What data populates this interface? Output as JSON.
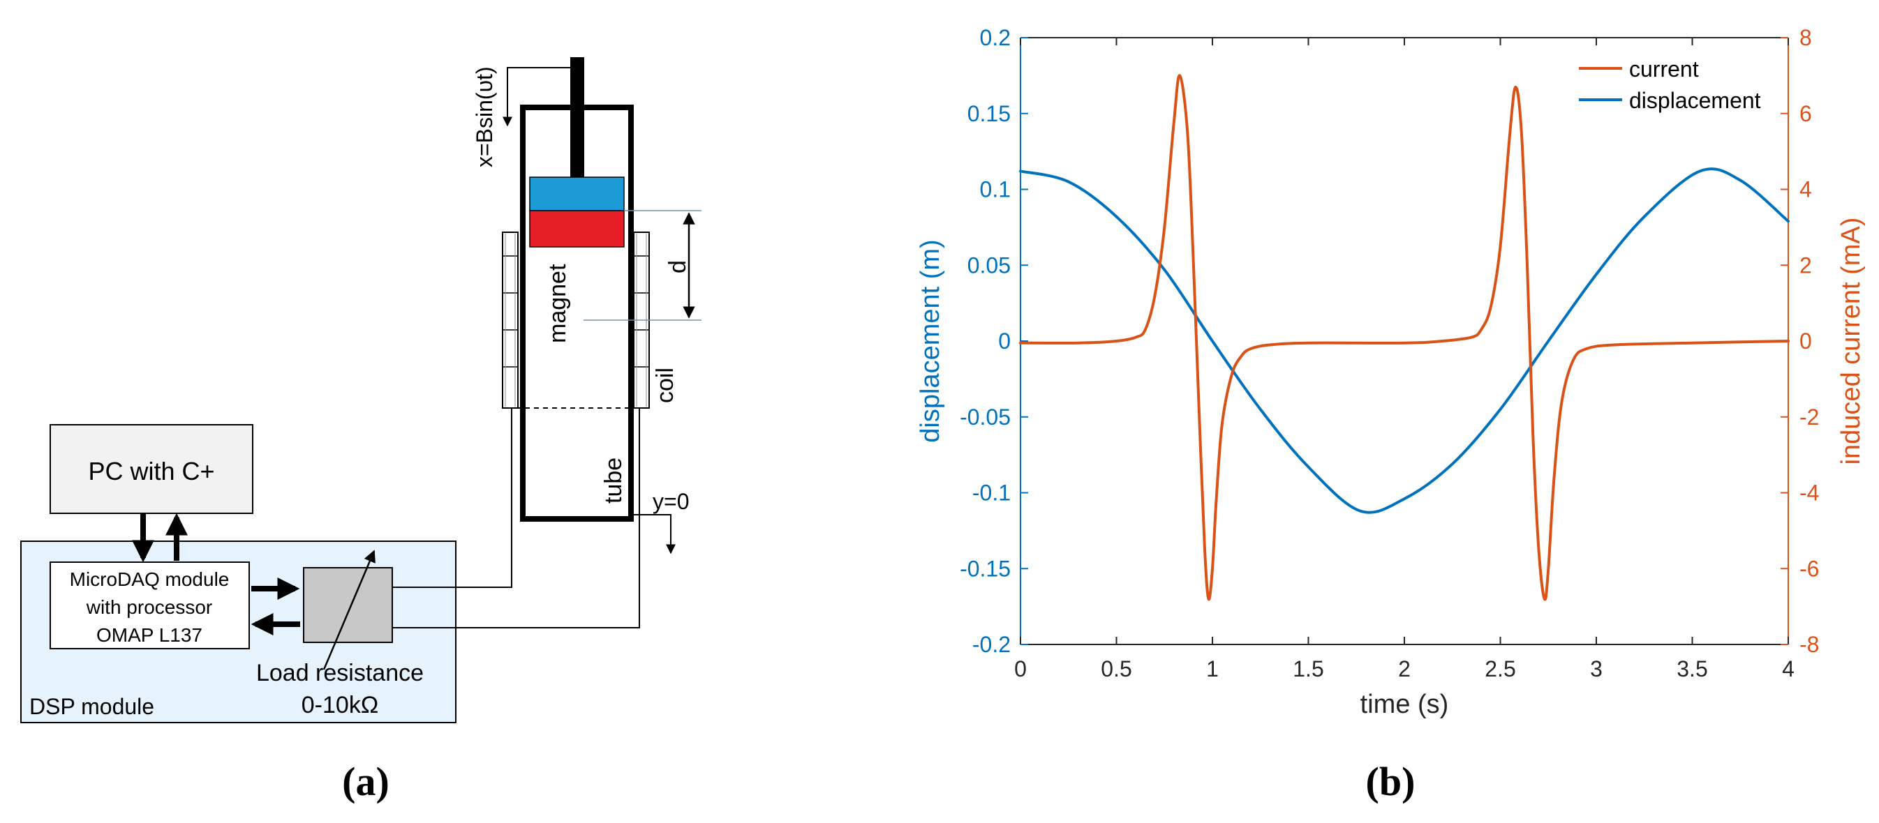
{
  "panel_a": {
    "label": "(a)",
    "pc_label": "PC with C+",
    "microdaq_lines": [
      "MicroDAQ module",
      "with processor",
      "OMAP L137"
    ],
    "dsp_label": "DSP module",
    "load_resistance_lines": [
      "Load resistance",
      "0-10kΩ"
    ],
    "excitation_label": "x=Bsin(υt)",
    "magnet_label": "magnet",
    "coil_label": "coil",
    "tube_label": "tube",
    "distance_label": "d",
    "origin_label": "y=0",
    "colors": {
      "magnet_top": "#1b9ad6",
      "magnet_bottom": "#e51f25",
      "dsp_fill": "#e6f3fc",
      "pc_fill": "#f2f2f2",
      "resistor_fill": "#c8c8c8"
    }
  },
  "panel_b": {
    "label": "(b)",
    "xlabel": "time (s)",
    "ylabel_left": "displacement (m)",
    "ylabel_right": "induced current (mA)",
    "xticks": [
      "0",
      "0.5",
      "1",
      "1.5",
      "2",
      "2.5",
      "3",
      "3.5",
      "4"
    ],
    "yticks_left": [
      "0.2",
      "0.15",
      "0.1",
      "0.05",
      "0",
      "-0.05",
      "-0.1",
      "-0.15",
      "-0.2"
    ],
    "yticks_right": [
      "8",
      "6",
      "4",
      "2",
      "0",
      "-2",
      "-4",
      "-6",
      "-8"
    ],
    "legend": [
      "current",
      "displacement"
    ]
  },
  "chart_data": {
    "type": "line",
    "xlabel": "time (s)",
    "ylabel": "displacement (m)",
    "y2label": "induced current (mA)",
    "xlim": [
      0,
      4
    ],
    "ylim": [
      -0.2,
      0.2
    ],
    "y2lim": [
      -8,
      8
    ],
    "grid": false,
    "legend_position": "top-right",
    "series": [
      {
        "name": "displacement",
        "axis": "left",
        "color": "#0072bd",
        "x": [
          0,
          0.25,
          0.5,
          0.75,
          1.0,
          1.25,
          1.5,
          1.77,
          2.0,
          2.25,
          2.5,
          2.75,
          3.0,
          3.25,
          3.54,
          3.75,
          4.0
        ],
        "values": [
          0.112,
          0.105,
          0.082,
          0.047,
          0.0,
          -0.045,
          -0.083,
          -0.112,
          -0.104,
          -0.081,
          -0.045,
          0.0,
          0.044,
          0.082,
          0.112,
          0.106,
          0.079
        ]
      },
      {
        "name": "current",
        "axis": "right",
        "color": "#d95319",
        "x": [
          0,
          0.3,
          0.5,
          0.6,
          0.65,
          0.7,
          0.75,
          0.8,
          0.83,
          0.87,
          0.9,
          0.93,
          0.96,
          0.98,
          1.0,
          1.02,
          1.05,
          1.1,
          1.15,
          1.2,
          1.3,
          1.5,
          2.0,
          2.2,
          2.35,
          2.4,
          2.45,
          2.5,
          2.55,
          2.58,
          2.61,
          2.64,
          2.67,
          2.7,
          2.73,
          2.75,
          2.78,
          2.82,
          2.88,
          2.95,
          3.1,
          3.5,
          4.0
        ],
        "values": [
          -0.05,
          -0.05,
          0.0,
          0.1,
          0.3,
          1.2,
          3.0,
          5.8,
          7.0,
          5.5,
          2.2,
          -1.8,
          -5.5,
          -6.8,
          -6.0,
          -4.2,
          -2.2,
          -0.9,
          -0.4,
          -0.2,
          -0.1,
          -0.05,
          -0.05,
          0.0,
          0.1,
          0.3,
          0.9,
          2.5,
          5.5,
          6.7,
          5.5,
          2.0,
          -2.5,
          -5.5,
          -6.8,
          -6.0,
          -3.6,
          -1.6,
          -0.5,
          -0.2,
          -0.1,
          -0.05,
          0.0
        ]
      }
    ]
  }
}
